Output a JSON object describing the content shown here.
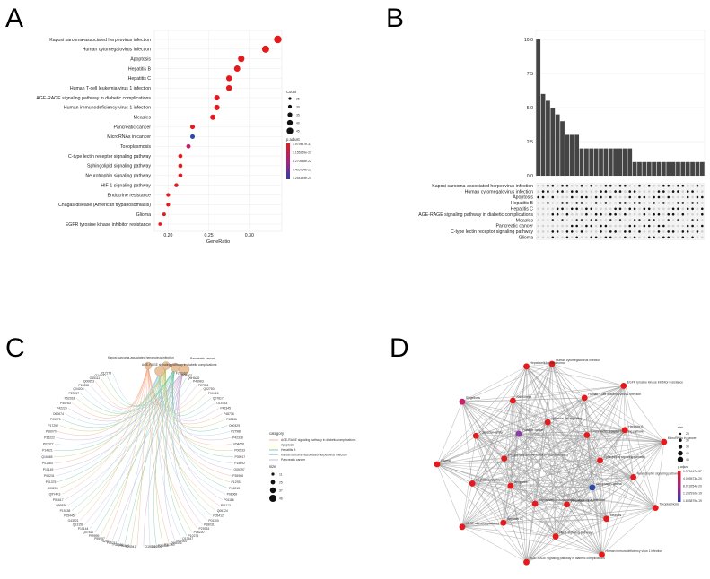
{
  "panels": {
    "A": "A",
    "B": "B",
    "C": "C",
    "D": "D"
  },
  "chart_data": [
    {
      "type": "scatter",
      "panel": "A",
      "xlabel": "GeneRatio",
      "xticks": [
        "0.20",
        "0.25",
        "0.30"
      ],
      "xlim": [
        0.183,
        0.34
      ],
      "categories": [
        "Kaposi sarcoma-associated herpesvirus infection",
        "Human cytomegalovirus infection",
        "Apoptosis",
        "Hepatitis B",
        "Hepatitis C",
        "Human T-cell leukemia virus 1 infection",
        "AGE-RAGE signaling pathway in diabetic complications",
        "Human immunodeficiency virus 1 infection",
        "Measles",
        "Pancreatic cancer",
        "MicroRNAs in cancer",
        "Toxoplasmosis",
        "C-type lectin receptor signaling pathway",
        "Sphingolipid signaling pathway",
        "Neurotrophin signaling pathway",
        "HIF-1 signaling pathway",
        "Endocrine resistance",
        "Chagas disease (American trypanosomiasis)",
        "Glioma",
        "EGFR tyrosine kinase inhibitor resistance"
      ],
      "x": [
        0.335,
        0.32,
        0.29,
        0.285,
        0.275,
        0.275,
        0.26,
        0.26,
        0.255,
        0.23,
        0.23,
        0.225,
        0.215,
        0.215,
        0.215,
        0.21,
        0.2,
        0.2,
        0.195,
        0.19
      ],
      "count": [
        50,
        48,
        44,
        43,
        41,
        41,
        39,
        39,
        38,
        34,
        34,
        33,
        32,
        32,
        32,
        31,
        30,
        30,
        29,
        28
      ],
      "colors": [
        "#e41a1c",
        "#e41a1c",
        "#e41a1c",
        "#e41a1c",
        "#e41a1c",
        "#e41a1c",
        "#e41a1c",
        "#e41a1c",
        "#e41a1c",
        "#e41a1c",
        "#2b4aa8",
        "#c8206a",
        "#e41a1c",
        "#e41a1c",
        "#e41a1c",
        "#e41a1c",
        "#e41a1c",
        "#e41a1c",
        "#e41a1c",
        "#e41a1c"
      ],
      "legend_count": {
        "title": "Count",
        "values": [
          "25",
          "30",
          "35",
          "40",
          "45"
        ]
      },
      "legend_padj": {
        "title": "p.adjust",
        "values": [
          "1.979447e-37",
          "3.155269e-22",
          "6.270538e-22",
          "9.405764e-22",
          "1.254139e-21"
        ]
      }
    },
    {
      "type": "bar",
      "panel": "B",
      "yticks": [
        "0.0",
        "2.5",
        "5.0",
        "7.5",
        "10.0"
      ],
      "ylim": [
        0,
        10.4
      ],
      "values": [
        10,
        6,
        5.5,
        5,
        4.5,
        4,
        3,
        3,
        3,
        2,
        2,
        2,
        2,
        2,
        2,
        2,
        2,
        2,
        2,
        2,
        1,
        1,
        1,
        1,
        1,
        1,
        1,
        1,
        1,
        1,
        1,
        1,
        1,
        1,
        1
      ],
      "sets": [
        "Kaposi sarcoma-associated herpesvirus infection",
        "Human cytomegalovirus infection",
        "Apoptosis",
        "Hepatitis B",
        "Hepatitis C",
        "AGE-RAGE signaling pathway in diabetic complications",
        "Measles",
        "Pancreatic cancer",
        "C-type lectin receptor signaling pathway",
        "Glioma"
      ]
    }
  ],
  "panelC": {
    "legend_title": "category",
    "legend_items": [
      "AGE-RAGE signaling pathway in diabetic complications",
      "Apoptosis",
      "Hepatitis B",
      "Kaposi sarcoma-associated herpesvirus infection",
      "Pancreatic cancer"
    ],
    "legend_colors": [
      "#f4a582",
      "#b8c966",
      "#66c2a5",
      "#9ecae1",
      "#c2a5cf"
    ],
    "size_title": "size",
    "size_values": [
      "11",
      "25",
      "37",
      "46"
    ],
    "top_labels": [
      "Kaposi sarcoma-associated herpesvirus infection",
      "Pancreatic cancer",
      "AGE-RAGE signaling pathway in diabetic complications"
    ],
    "genes": [
      "F2YGS7",
      "P08502",
      "Q9HAZ8",
      "P45983",
      "P27361",
      "Q02750",
      "P10415",
      "Q07817",
      "O14733",
      "P42345",
      "P48736",
      "P42336",
      "O00329",
      "P27986",
      "P42338",
      "P04626",
      "P00533",
      "P09917",
      "P15692",
      "Q05397",
      "P35968",
      "P12931",
      "P06213",
      "P08069",
      "P01116",
      "P01112",
      "Q06124",
      "P05412",
      "P01100",
      "P18031",
      "P29353",
      "P16220",
      "P10276",
      "Q13547",
      "P07900",
      "Q96EB6",
      "P31749",
      "P23458",
      "O14508",
      "O15392",
      "P24941",
      "P06400",
      "P38936",
      "P55211",
      "P42574",
      "P55957",
      "P99999",
      "Q07812",
      "P10144",
      "Q13158",
      "O43521",
      "P25445",
      "P19438",
      "Q99836",
      "P51617",
      "Q9Y4K3",
      "O00206",
      "P01375",
      "P05231",
      "P10145",
      "P01584",
      "Q16665",
      "P14921",
      "P03372",
      "P35222",
      "P16070",
      "P17252",
      "P05771",
      "O60674",
      "P42229",
      "P40763",
      "P52333",
      "P29597",
      "Q04206",
      "P19838",
      "Q00653",
      "O15111",
      "O14920",
      "P17275"
    ]
  },
  "panelD": {
    "nodes": [
      {
        "label": "Human cytomegalovirus infection",
        "color": "#e41a1c"
      },
      {
        "label": "Human T-cell leukemia virus 1 infection",
        "color": "#e41a1c"
      },
      {
        "label": "C-type lectin receptor signaling pathway",
        "color": "#e41a1c"
      },
      {
        "label": "EGFR tyrosine kinase inhibitor resistance",
        "color": "#e41a1c"
      },
      {
        "label": "Hepatitis B",
        "color": "#e41a1c"
      },
      {
        "label": "Sphingolipid signaling pathway",
        "color": "#e41a1c"
      },
      {
        "label": "MicroRNAs in cancer",
        "color": "#e41a1c"
      },
      {
        "label": "Neurotrophin signaling pathway",
        "color": "#e41a1c"
      },
      {
        "label": "Autophagy - animal",
        "color": "#2b4aa8"
      },
      {
        "label": "Toxoplasmosis",
        "color": "#e41a1c"
      },
      {
        "label": "Measles",
        "color": "#e41a1c"
      },
      {
        "label": "Pancreatic cancer",
        "color": "#e41a1c"
      },
      {
        "label": "Human immunodeficiency virus 1 infection",
        "color": "#e41a1c"
      },
      {
        "label": "HIF-1 signaling pathway",
        "color": "#e41a1c"
      },
      {
        "label": "Kaposi sarcoma-associated herpesvirus infection",
        "color": "#e41a1c"
      },
      {
        "label": "AGE-RAGE signaling pathway in diabetic complications",
        "color": "#e41a1c"
      },
      {
        "label": "Hepatitis C",
        "color": "#e41a1c"
      },
      {
        "label": "Apoptosis",
        "color": "#e41a1c"
      },
      {
        "label": "VEGF signaling pathway",
        "color": "#e41a1c"
      },
      {
        "label": "Endocrine resistance",
        "color": "#e41a1c"
      },
      {
        "label": "Chagas disease (American trypanosomiasis)",
        "color": "#e41a1c"
      },
      {
        "label": "Glioma",
        "color": "#e41a1c"
      },
      {
        "label": "Colorectal cancer",
        "color": "#e41a1c"
      },
      {
        "label": "Prostate cancer",
        "color": "#8e3aa8"
      },
      {
        "label": "Shigellosis",
        "color": "#c8206a"
      },
      {
        "label": "Salmonella",
        "color": "#e41a1c"
      },
      {
        "label": "Epithelial cell signaling",
        "color": "#e41a1c"
      },
      {
        "label": "Hepatocellular carcinoma",
        "color": "#e41a1c"
      }
    ],
    "legend_size_title": "size",
    "legend_size_values": [
      "25",
      "30",
      "35",
      "40",
      "45"
    ],
    "legend_padj_title": "p.adjust",
    "legend_padj_values": [
      "1.979447e-37",
      "4.009573e-20",
      "8.019254e-20",
      "1.202910e-19",
      "1.603879e-19"
    ]
  }
}
